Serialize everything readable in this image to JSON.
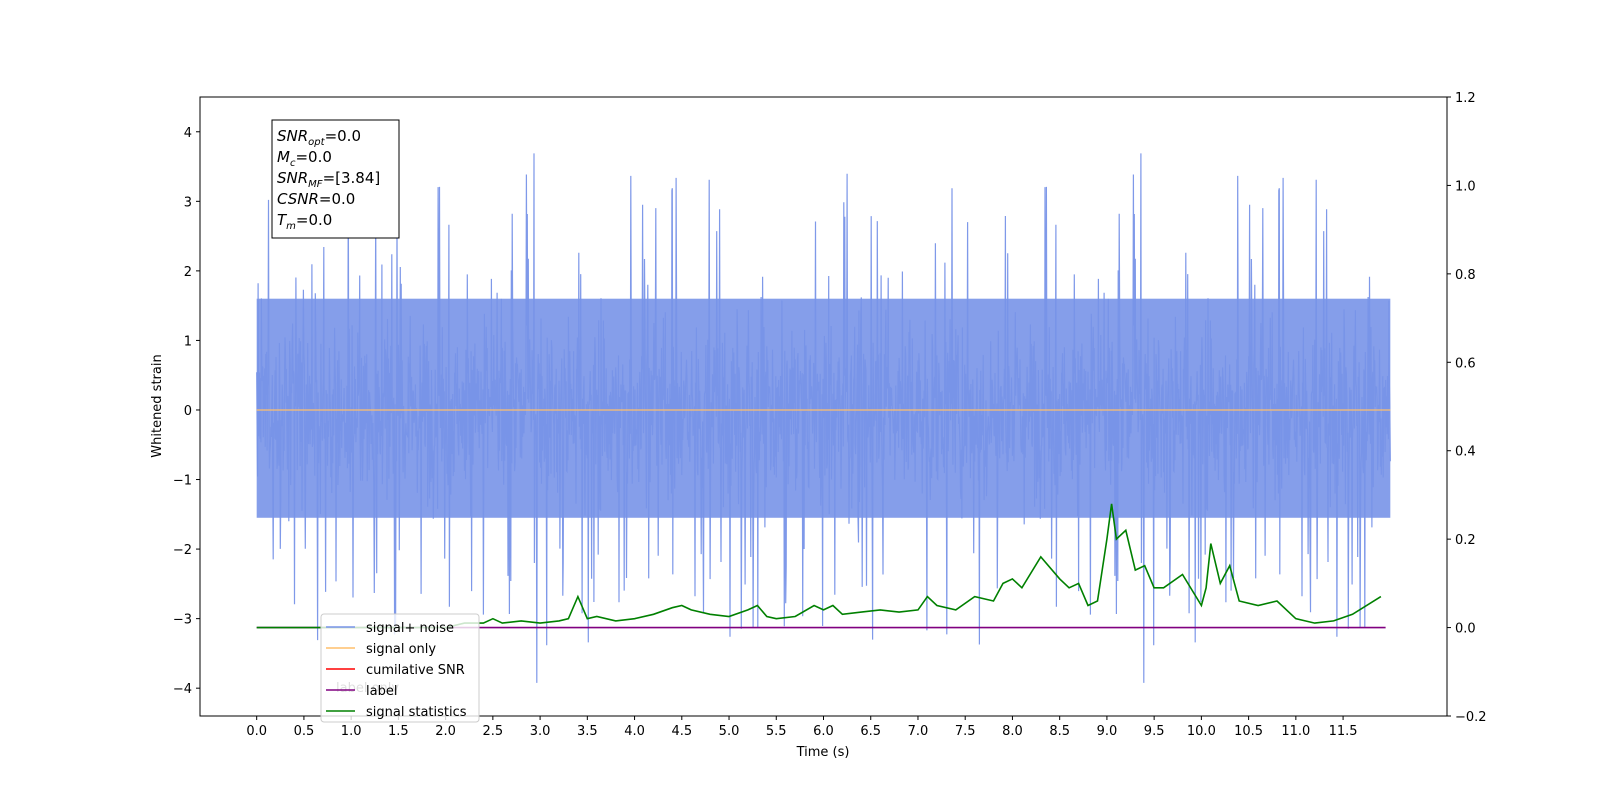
{
  "chart_data": {
    "type": "line",
    "xlabel": "Time (s)",
    "ylabel": "Whitened strain",
    "xlim": [
      -0.6,
      12.6
    ],
    "ylim": [
      -4.4,
      4.5
    ],
    "y2lim": [
      -0.2,
      1.2
    ],
    "x_ticks": [
      0.0,
      0.5,
      1.0,
      1.5,
      2.0,
      2.5,
      3.0,
      3.5,
      4.0,
      4.5,
      5.0,
      5.5,
      6.0,
      6.5,
      7.0,
      7.5,
      8.0,
      8.5,
      9.0,
      9.5,
      10.0,
      10.5,
      11.0,
      11.5
    ],
    "x_tick_labels": [
      "0.0",
      "0.5",
      "1.0",
      "1.5",
      "2.0",
      "2.5",
      "3.0",
      "3.5",
      "4.0",
      "4.5",
      "5.0",
      "5.5",
      "6.0",
      "6.5",
      "7.0",
      "7.5",
      "8.0",
      "8.5",
      "9.0",
      "9.5",
      "10.0",
      "10.5",
      "11.0",
      "11.5"
    ],
    "y_ticks": [
      4,
      3,
      2,
      1,
      0,
      -1,
      -2,
      -3,
      -4
    ],
    "y_tick_labels": [
      "4",
      "3",
      "2",
      "1",
      "0",
      "−1",
      "−2",
      "−3",
      "−4"
    ],
    "y2_ticks": [
      1.2,
      1.0,
      0.8,
      0.6,
      0.4,
      0.2,
      0.0,
      -0.2
    ],
    "y2_tick_labels": [
      "1.2",
      "1.0",
      "0.8",
      "0.6",
      "0.4",
      "0.2",
      "0.0",
      "−0.2"
    ],
    "noise_trace": {
      "x_start": 0.0,
      "x_end": 12.0,
      "core_min": -1.55,
      "core_max": 1.6,
      "peak_max": 4.1,
      "peak_min": -3.97,
      "color": "#7894e8"
    },
    "series": [
      {
        "name": "signal+ noise",
        "color": "#7894e8",
        "axis": "left",
        "kind": "noise"
      },
      {
        "name": "signal only",
        "color": "#ffbf6b",
        "axis": "left",
        "x": [
          0.0,
          12.0
        ],
        "y": [
          0.0,
          0.0
        ]
      },
      {
        "name": "cumilative SNR",
        "color": "#ff0000",
        "axis": "right",
        "x": [],
        "y": []
      },
      {
        "name": "label",
        "color": "#800080",
        "axis": "right",
        "x": [
          0.0,
          11.95
        ],
        "y": [
          0.0,
          0.0
        ]
      },
      {
        "name": "signal statistics",
        "color": "#008000",
        "axis": "right",
        "x": [
          0.0,
          2.0,
          2.2,
          2.4,
          2.5,
          2.6,
          2.8,
          3.0,
          3.2,
          3.3,
          3.4,
          3.5,
          3.6,
          3.8,
          4.0,
          4.2,
          4.4,
          4.5,
          4.6,
          4.8,
          5.0,
          5.2,
          5.3,
          5.4,
          5.5,
          5.7,
          5.9,
          6.0,
          6.1,
          6.2,
          6.4,
          6.6,
          6.8,
          7.0,
          7.1,
          7.2,
          7.4,
          7.6,
          7.8,
          7.9,
          8.0,
          8.1,
          8.3,
          8.5,
          8.6,
          8.7,
          8.8,
          8.9,
          9.0,
          9.05,
          9.1,
          9.2,
          9.3,
          9.4,
          9.5,
          9.6,
          9.8,
          10.0,
          10.05,
          10.1,
          10.2,
          10.3,
          10.4,
          10.6,
          10.8,
          11.0,
          11.2,
          11.4,
          11.6,
          11.9
        ],
        "y": [
          0.0,
          0.0,
          0.01,
          0.01,
          0.02,
          0.01,
          0.015,
          0.01,
          0.015,
          0.02,
          0.07,
          0.02,
          0.025,
          0.015,
          0.02,
          0.03,
          0.045,
          0.05,
          0.04,
          0.03,
          0.025,
          0.04,
          0.05,
          0.025,
          0.02,
          0.025,
          0.05,
          0.04,
          0.05,
          0.03,
          0.035,
          0.04,
          0.035,
          0.04,
          0.07,
          0.05,
          0.04,
          0.07,
          0.06,
          0.1,
          0.11,
          0.09,
          0.16,
          0.11,
          0.09,
          0.1,
          0.05,
          0.06,
          0.2,
          0.28,
          0.2,
          0.22,
          0.13,
          0.14,
          0.09,
          0.09,
          0.12,
          0.05,
          0.09,
          0.19,
          0.1,
          0.14,
          0.06,
          0.05,
          0.06,
          0.02,
          0.01,
          0.015,
          0.03,
          0.07
        ]
      }
    ],
    "legend": {
      "placement": "lower-left",
      "entries": [
        {
          "label": "signal+ noise",
          "color": "#7894e8"
        },
        {
          "label": "signal only",
          "color": "#ffbf6b"
        },
        {
          "label": "cumilative SNR",
          "color": "#ff0000"
        },
        {
          "label": "label",
          "color": "#800080"
        },
        {
          "label": "signal statistics",
          "color": "#008000"
        }
      ],
      "background_text": [
        "label only"
      ]
    },
    "annotation": {
      "placement": "upper-left",
      "lines": [
        {
          "main": "SNR",
          "sub": "opt",
          "value": "=0.0"
        },
        {
          "main": "M",
          "sub": "c",
          "value": "=0.0"
        },
        {
          "main": "SNR",
          "sub": "MF",
          "value": "=[3.84]"
        },
        {
          "main": "CSNR",
          "sub": "",
          "value": "=0.0"
        },
        {
          "main": "T",
          "sub": "m",
          "value": "=0.0"
        }
      ]
    }
  }
}
